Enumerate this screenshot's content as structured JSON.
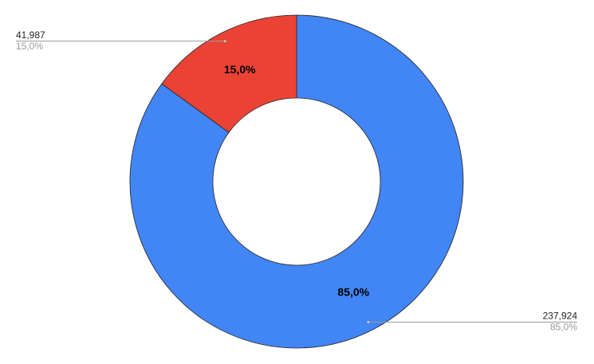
{
  "chart_data": {
    "type": "donut",
    "values": [
      237924,
      41987
    ],
    "value_labels": [
      "237,924",
      "41,987"
    ],
    "percents": [
      85.0,
      15.0
    ],
    "percent_labels": [
      "85,0%",
      "15,0%"
    ],
    "colors": [
      "#4285f4",
      "#ea4335"
    ]
  }
}
